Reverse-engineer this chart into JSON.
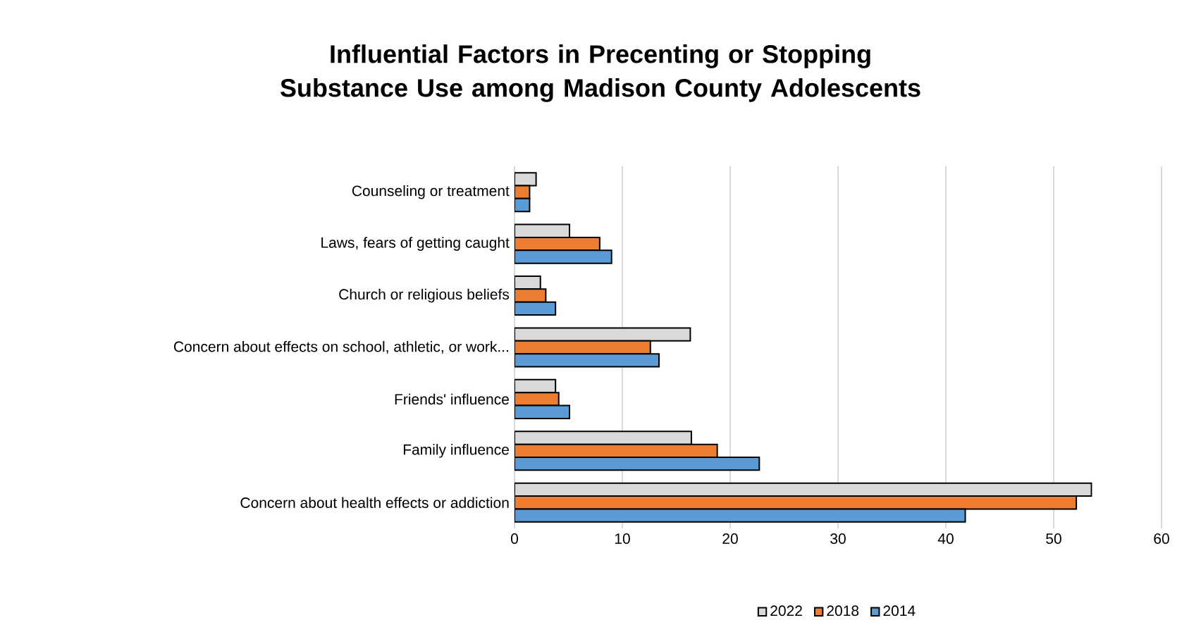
{
  "chart_data": {
    "type": "bar",
    "orientation": "horizontal",
    "title": "Influential Factors in Precenting or Stopping Substance Use among Madison County Adolescents",
    "categories": [
      "Counseling or treatment",
      "Laws, fears of getting caught",
      "Church or religious beliefs",
      "Concern about effects on school, athletic, or work...",
      "Friends' influence",
      "Family influence",
      "Concern about health effects or addiction"
    ],
    "series": [
      {
        "name": "2022",
        "color": "#d9d9d9",
        "values": [
          2.0,
          5.1,
          2.4,
          16.3,
          3.8,
          16.4,
          53.5
        ]
      },
      {
        "name": "2018",
        "color": "#ed7d31",
        "values": [
          1.4,
          7.9,
          2.9,
          12.6,
          4.1,
          18.8,
          52.1
        ]
      },
      {
        "name": "2014",
        "color": "#5b9bd5",
        "values": [
          1.4,
          9.0,
          3.8,
          13.4,
          5.1,
          22.7,
          41.8
        ]
      }
    ],
    "xlim": [
      0,
      60
    ],
    "xticks": [
      0,
      10,
      20,
      30,
      40,
      50,
      60
    ],
    "grid": "x",
    "legend": "bottom"
  }
}
